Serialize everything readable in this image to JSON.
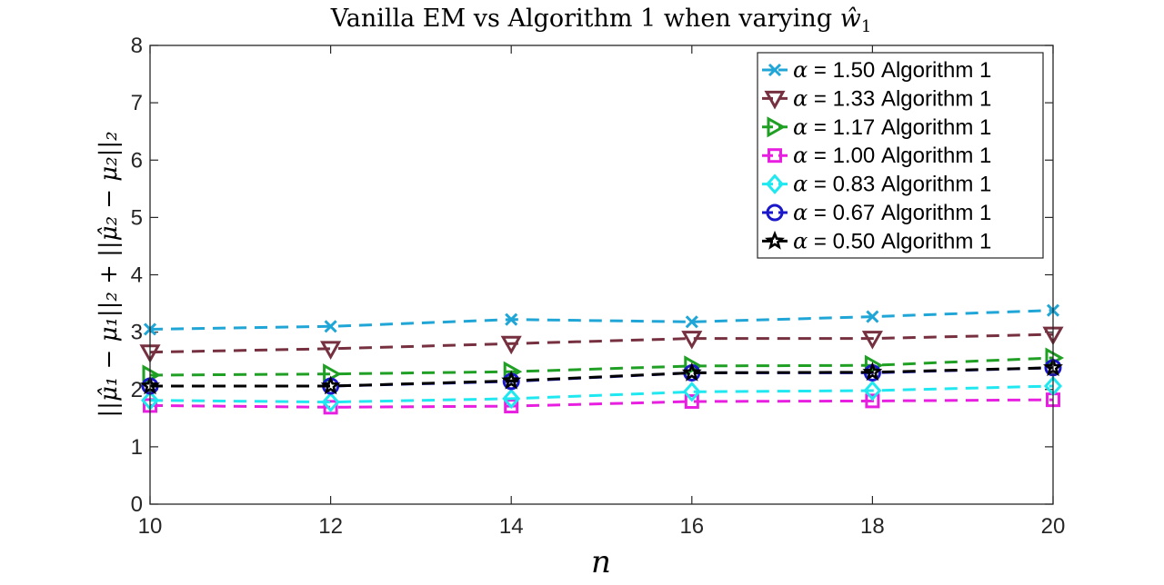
{
  "chart_data": {
    "type": "line",
    "title": "Vanilla EM vs Algorithm 1 when varying ŵ₁",
    "title_main": "Vanilla EM vs Algorithm 1 when varying ",
    "title_var": "ŵ",
    "title_sub": "1",
    "xlabel": "n",
    "ylabel": "||μ̂₁ − μ₁||₂ + ||μ̂₂ − μ₂||₂",
    "xlim": [
      10,
      20
    ],
    "ylim": [
      0,
      8
    ],
    "xticks": [
      10,
      12,
      14,
      16,
      18,
      20
    ],
    "yticks": [
      0,
      1,
      2,
      3,
      4,
      5,
      6,
      7,
      8
    ],
    "x": [
      10,
      12,
      14,
      16,
      18,
      20
    ],
    "legend_position": "top-right",
    "series": [
      {
        "name": "α = 1.50 Algorithm 1",
        "alpha": "α",
        "label": " = 1.50 Algorithm 1",
        "marker": "x",
        "color": "#1FA6D6",
        "values": [
          3.05,
          3.1,
          3.22,
          3.18,
          3.27,
          3.38
        ]
      },
      {
        "name": "α = 1.33 Algorithm 1",
        "alpha": "α",
        "label": " = 1.33 Algorithm 1",
        "marker": "triangle-down",
        "color": "#76303F",
        "values": [
          2.65,
          2.71,
          2.8,
          2.89,
          2.89,
          2.96
        ]
      },
      {
        "name": "α = 1.17 Algorithm 1",
        "alpha": "α",
        "label": " = 1.17 Algorithm 1",
        "marker": "triangle-right",
        "color": "#1FA024",
        "values": [
          2.25,
          2.27,
          2.31,
          2.41,
          2.42,
          2.55
        ]
      },
      {
        "name": "α = 1.00 Algorithm 1",
        "alpha": "α",
        "label": " = 1.00 Algorithm 1",
        "marker": "square",
        "color": "#E81FE0",
        "values": [
          1.72,
          1.69,
          1.71,
          1.79,
          1.8,
          1.82
        ]
      },
      {
        "name": "α = 0.83 Algorithm 1",
        "alpha": "α",
        "label": " = 0.83 Algorithm 1",
        "marker": "diamond",
        "color": "#1FE8F0",
        "values": [
          1.81,
          1.78,
          1.84,
          1.96,
          1.98,
          2.06
        ]
      },
      {
        "name": "α = 0.67 Algorithm 1",
        "alpha": "α",
        "label": " = 0.67 Algorithm 1",
        "marker": "circle",
        "color": "#1A18C8",
        "values": [
          2.06,
          2.06,
          2.14,
          2.29,
          2.29,
          2.38
        ]
      },
      {
        "name": "α = 0.50 Algorithm 1",
        "alpha": "α",
        "label": " = 0.50 Algorithm 1",
        "marker": "star",
        "color": "#000000",
        "values": [
          2.06,
          2.06,
          2.15,
          2.29,
          2.3,
          2.38
        ]
      }
    ]
  }
}
